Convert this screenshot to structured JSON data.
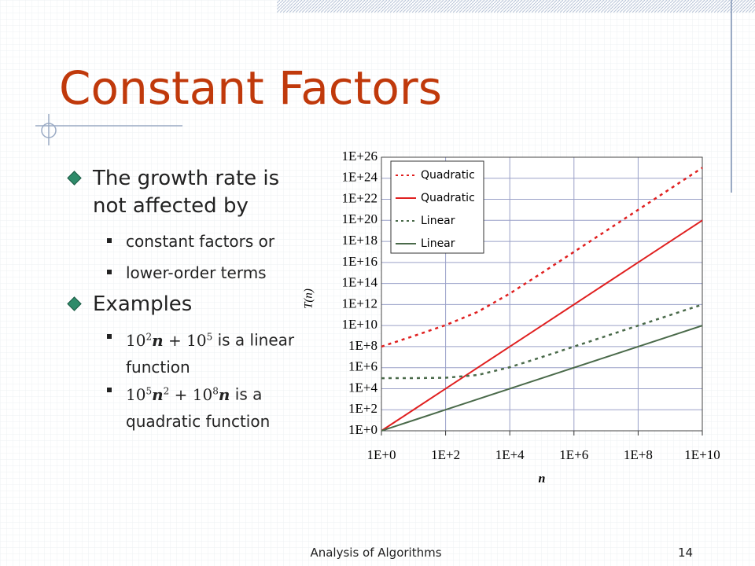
{
  "slide": {
    "title": "Constant Factors",
    "bullets": [
      {
        "text": "The growth rate is not affected by",
        "subs": [
          "constant factors or",
          "lower-order terms"
        ]
      },
      {
        "text": "Examples",
        "subs": [
          {
            "base1": "10",
            "exp1": "2",
            "var1": "n",
            "op": "+",
            "base2": "10",
            "exp2": "5",
            "rest": "is a linear function"
          },
          {
            "base1": "10",
            "exp1": "5",
            "var1": "n",
            "exp_var": "2",
            "op": "+",
            "base2": "10",
            "exp2": "8",
            "var2": "n",
            "rest": "is a quadratic function"
          }
        ]
      }
    ],
    "footer": "Analysis of Algorithms",
    "page_number": "14"
  },
  "chart_data": {
    "type": "line",
    "x_label": "n",
    "y_label": "T(n)",
    "log_x": true,
    "log_y": true,
    "grid": true,
    "legend": "upper left",
    "x": [
      1,
      10,
      100,
      1000,
      10000,
      100000,
      1000000,
      10000000,
      100000000,
      1000000000,
      10000000000
    ],
    "series": [
      {
        "name": "Quadratic",
        "color": "#e02020",
        "dashed": true,
        "values": [
          100100000,
          1010000000,
          11000000000,
          200000000000,
          11000000000000,
          1010000000000000,
          100100000000000000,
          1e+19,
          1e+21,
          1e+23,
          1e+25
        ]
      },
      {
        "name": "Quadratic",
        "color": "#e02020",
        "dashed": false,
        "values": [
          1,
          100,
          10000,
          1000000,
          100000000,
          10000000000,
          1000000000000,
          100000000000000.0,
          1e+16,
          1e+18,
          1e+20
        ]
      },
      {
        "name": "Linear",
        "color": "#4a6a4a",
        "dashed": true,
        "values": [
          100100,
          101000,
          110000,
          200000,
          1100000,
          10100000,
          100100000,
          1000000000,
          10000000000,
          100000000000,
          1000000000000
        ]
      },
      {
        "name": "Linear",
        "color": "#4a6a4a",
        "dashed": false,
        "values": [
          1,
          10,
          100,
          1000,
          10000,
          100000,
          1000000,
          10000000,
          100000000,
          1000000000,
          10000000000
        ]
      }
    ],
    "xlim": [
      1,
      10000000000
    ],
    "ylim": [
      1,
      1e+26
    ],
    "xticks": [
      {
        "value": 1,
        "label": "1E+0"
      },
      {
        "value": 100,
        "label": "1E+2"
      },
      {
        "value": 10000,
        "label": "1E+4"
      },
      {
        "value": 1000000,
        "label": "1E+6"
      },
      {
        "value": 100000000,
        "label": "1E+8"
      },
      {
        "value": 10000000000,
        "label": "1E+10"
      }
    ],
    "yticks": [
      {
        "value": 1,
        "label": "1E+0"
      },
      {
        "value": 100,
        "label": "1E+2"
      },
      {
        "value": 10000,
        "label": "1E+4"
      },
      {
        "value": 1000000,
        "label": "1E+6"
      },
      {
        "value": 100000000,
        "label": "1E+8"
      },
      {
        "value": 10000000000,
        "label": "1E+10"
      },
      {
        "value": 1000000000000,
        "label": "1E+12"
      },
      {
        "value": 100000000000000.0,
        "label": "1E+14"
      },
      {
        "value": 1e+16,
        "label": "1E+16"
      },
      {
        "value": 1e+18,
        "label": "1E+18"
      },
      {
        "value": 1e+20,
        "label": "1E+20"
      },
      {
        "value": 1e+22,
        "label": "1E+22"
      },
      {
        "value": 1e+24,
        "label": "1E+24"
      },
      {
        "value": 1e+26,
        "label": "1E+26"
      }
    ]
  }
}
